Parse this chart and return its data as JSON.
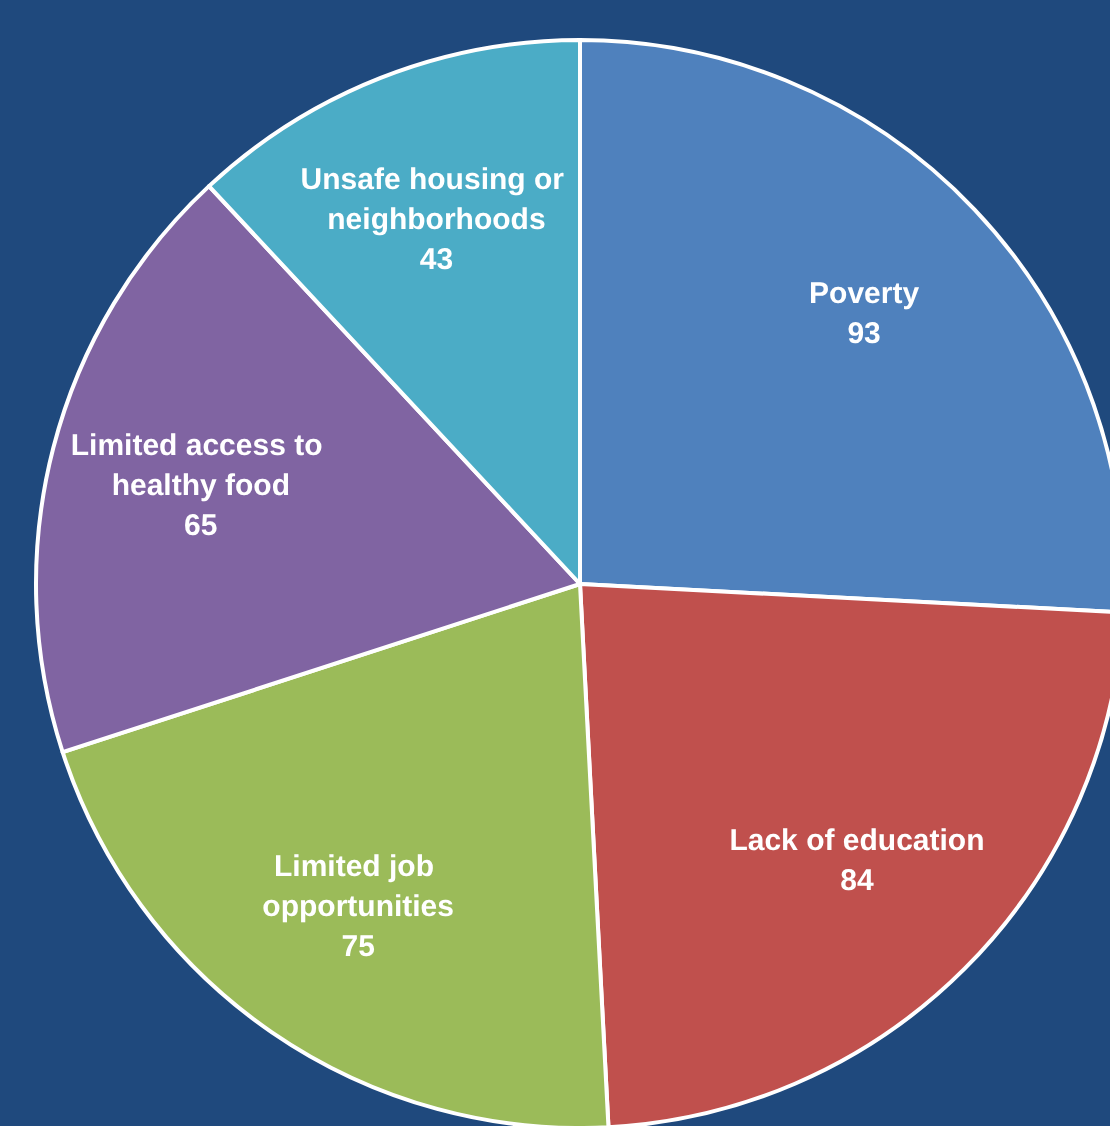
{
  "chart_data": {
    "type": "pie",
    "categories": [
      "Poverty",
      "Lack of education",
      "Limited job opportunities",
      "Limited access to healthy food",
      "Unsafe housing or neighborhoods"
    ],
    "values": [
      93,
      84,
      75,
      65,
      43
    ],
    "colors": [
      "#4f81bd",
      "#c0504d",
      "#9bbb59",
      "#8064a2",
      "#4bacc6"
    ],
    "data_labels": true,
    "legend": false
  }
}
